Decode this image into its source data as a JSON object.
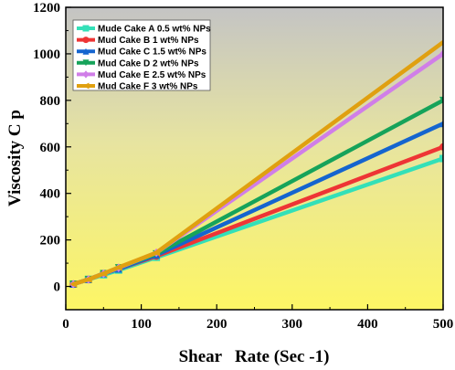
{
  "chart_data": {
    "type": "line",
    "title": "",
    "xlabel": "Shear   Rate (Sec -1)",
    "ylabel": "Viscosity C p",
    "xlim": [
      0,
      500
    ],
    "ylim": [
      -100,
      1200
    ],
    "xticks": [
      0,
      100,
      200,
      300,
      400,
      500
    ],
    "yticks": [
      0,
      200,
      400,
      600,
      800,
      1000,
      1200
    ],
    "grid": false,
    "legend_position": "top-left",
    "background": "gradient gray (top) to yellow (bottom)",
    "x": [
      10,
      30,
      50,
      70,
      120,
      500
    ],
    "series": [
      {
        "name": "Mude Cake A 0.5 wt% NPs",
        "color": "#33e0b8",
        "marker": "square",
        "values": [
          10,
          30,
          50,
          70,
          125,
          550
        ]
      },
      {
        "name": "Mud  Cake B 1 wt% NPs",
        "color": "#ee3535",
        "marker": "circle",
        "values": [
          10,
          30,
          55,
          75,
          130,
          600
        ]
      },
      {
        "name": "Mud Cake  C 1.5 wt% NPs",
        "color": "#1565cf",
        "marker": "triangle-up",
        "values": [
          10,
          30,
          55,
          75,
          135,
          700
        ]
      },
      {
        "name": "Mud Cake  D 2 wt% NPs",
        "color": "#16a35a",
        "marker": "triangle-down",
        "values": [
          10,
          30,
          55,
          80,
          140,
          800
        ]
      },
      {
        "name": "Mud Cake  E 2.5 wt% NPs",
        "color": "#d07ee8",
        "marker": "diamond",
        "values": [
          10,
          30,
          55,
          80,
          145,
          1000
        ]
      },
      {
        "name": "Mud Cake  F 3 wt% NPs",
        "color": "#e0a010",
        "marker": "triangle-left",
        "values": [
          10,
          30,
          55,
          82,
          145,
          1050
        ]
      }
    ]
  }
}
